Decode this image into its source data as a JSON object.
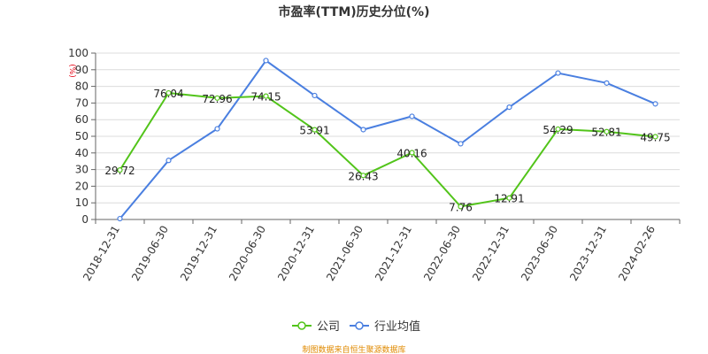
{
  "chart_data": {
    "type": "line",
    "title": "市盈率(TTM)历史分位(%)",
    "y_unit": "(%)",
    "x": [
      "2018-12-31",
      "2019-06-30",
      "2019-12-31",
      "2020-06-30",
      "2020-12-31",
      "2021-06-30",
      "2021-12-31",
      "2022-06-30",
      "2022-12-31",
      "2023-06-30",
      "2023-12-31",
      "2024-02-26"
    ],
    "ylim": [
      0,
      100
    ],
    "yticks": [
      0,
      10,
      20,
      30,
      40,
      50,
      60,
      70,
      80,
      90,
      100
    ],
    "grid": true,
    "legend_position": "bottom",
    "series": [
      {
        "name": "公司",
        "color": "#52c41a",
        "values": [
          29.72,
          76.04,
          72.96,
          74.15,
          53.91,
          26.43,
          40.16,
          7.76,
          12.91,
          54.29,
          52.81,
          49.75
        ],
        "labels": [
          "29.72",
          "76.04",
          "72.96",
          "74.15",
          "53.91",
          "26.43",
          "40.16",
          "7.76",
          "12.91",
          "54.29",
          "52.81",
          "49.75"
        ]
      },
      {
        "name": "行业均值",
        "color": "#4a7fe0",
        "values": [
          0.5,
          35.5,
          54.5,
          95.5,
          74.5,
          54,
          62,
          45.5,
          67.5,
          88,
          82,
          69.5
        ]
      }
    ]
  },
  "source_text": "制图数据来自恒生聚源数据库"
}
